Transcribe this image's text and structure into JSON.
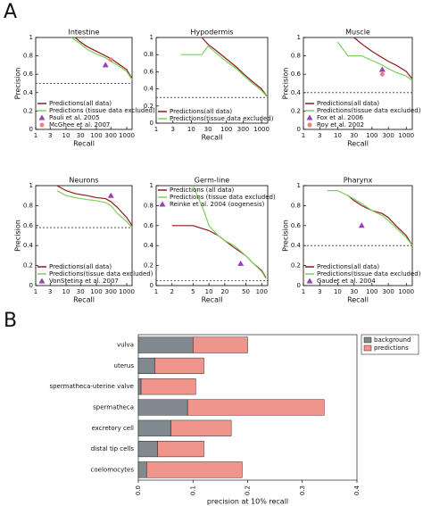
{
  "panel_labels": [
    "A",
    "B"
  ],
  "chart_data": [
    {
      "type": "line",
      "title": "Intestine",
      "xlabel": "Recall",
      "ylabel": "Precision",
      "xlog": true,
      "xlim": [
        1,
        1500
      ],
      "ylim": [
        0,
        1
      ],
      "xticks": [
        1,
        3,
        10,
        30,
        100,
        300,
        1000
      ],
      "yticks": [
        0,
        0.2,
        0.4,
        0.6,
        0.8,
        1
      ],
      "baseline": 0.5,
      "legend": "lower left",
      "series": [
        {
          "name": "Predictions(all data)",
          "color": "#8b1a1a",
          "x": [
            20,
            30,
            50,
            100,
            200,
            300,
            500,
            1000,
            1500
          ],
          "values": [
            1,
            0.95,
            0.9,
            0.85,
            0.8,
            0.77,
            0.72,
            0.65,
            0.55
          ]
        },
        {
          "name": "Predictions (tissue data excluded)",
          "color": "#7ccf5c",
          "x": [
            15,
            30,
            50,
            100,
            200,
            300,
            500,
            1000,
            1500
          ],
          "values": [
            1,
            0.93,
            0.87,
            0.82,
            0.78,
            0.74,
            0.7,
            0.63,
            0.54
          ]
        },
        {
          "name": "Pauli et al. 2005",
          "color": "#9b3fb5",
          "marker": "triangle",
          "x": [
            200
          ],
          "values": [
            0.7
          ]
        },
        {
          "name": "McGhee et al. 2007",
          "color": "#f08080",
          "marker": "circle",
          "x": [
            300
          ],
          "values": [
            0.76
          ]
        }
      ]
    },
    {
      "type": "line",
      "title": "Hypodermis",
      "xlabel": "Recall",
      "xlog": true,
      "xlim": [
        1,
        1500
      ],
      "ylim": [
        0,
        1
      ],
      "xticks": [
        1,
        3,
        10,
        30,
        100,
        300,
        1000
      ],
      "yticks": [
        0,
        0.2,
        0.4,
        0.6,
        0.8,
        1
      ],
      "baseline": 0.3,
      "legend": "lower left",
      "series": [
        {
          "name": "Predictions(all data)",
          "color": "#8b1a1a",
          "x": [
            20,
            30,
            50,
            100,
            200,
            300,
            500,
            1000,
            1500
          ],
          "values": [
            1,
            0.92,
            0.85,
            0.75,
            0.65,
            0.58,
            0.5,
            0.4,
            0.3
          ]
        },
        {
          "name": "Predictions(tissue data excluded)",
          "color": "#7ccf5c",
          "x": [
            5,
            20,
            30,
            50,
            100,
            200,
            300,
            500,
            1000,
            1500
          ],
          "values": [
            0.8,
            0.8,
            0.9,
            0.82,
            0.72,
            0.63,
            0.56,
            0.48,
            0.38,
            0.3
          ]
        }
      ]
    },
    {
      "type": "line",
      "title": "Muscle",
      "xlabel": "Recall",
      "ylabel": "Precision",
      "xlog": true,
      "xlim": [
        1,
        1500
      ],
      "ylim": [
        0,
        1
      ],
      "xticks": [
        1,
        3,
        10,
        30,
        100,
        300,
        1000
      ],
      "yticks": [
        0,
        0.2,
        0.4,
        0.6,
        0.8,
        1
      ],
      "baseline": 0.4,
      "legend": "lower left",
      "series": [
        {
          "name": "Predictions(all data)",
          "color": "#8b1a1a",
          "x": [
            30,
            50,
            100,
            200,
            300,
            500,
            1000,
            1500
          ],
          "values": [
            1,
            0.93,
            0.85,
            0.78,
            0.74,
            0.7,
            0.63,
            0.55
          ]
        },
        {
          "name": "Predictions(tissue data excluded)",
          "color": "#7ccf5c",
          "x": [
            10,
            20,
            50,
            100,
            200,
            300,
            500,
            1000,
            1500
          ],
          "values": [
            0.95,
            0.8,
            0.8,
            0.75,
            0.7,
            0.66,
            0.62,
            0.58,
            0.53
          ]
        },
        {
          "name": "Fox et al. 2006",
          "color": "#9b3fb5",
          "marker": "triangle",
          "x": [
            200
          ],
          "values": [
            0.65
          ]
        },
        {
          "name": "Roy et al. 2002",
          "color": "#f08080",
          "marker": "circle",
          "x": [
            200
          ],
          "values": [
            0.6
          ]
        }
      ]
    },
    {
      "type": "line",
      "title": "Neurons",
      "xlabel": "Recall",
      "ylabel": "Precision",
      "xlog": true,
      "xlim": [
        1,
        1500
      ],
      "ylim": [
        0,
        1
      ],
      "xticks": [
        1,
        3,
        10,
        30,
        100,
        300,
        1000
      ],
      "yticks": [
        0,
        0.2,
        0.4,
        0.6,
        0.8,
        1
      ],
      "baseline": 0.58,
      "legend": "lower left",
      "series": [
        {
          "name": "Predictions(all data)",
          "color": "#8b1a1a",
          "x": [
            5,
            10,
            20,
            50,
            100,
            200,
            300,
            500,
            1000,
            1500
          ],
          "values": [
            1,
            0.95,
            0.92,
            0.9,
            0.88,
            0.87,
            0.84,
            0.78,
            0.68,
            0.6
          ]
        },
        {
          "name": "Predictions(tissue data excluded)",
          "color": "#7ccf5c",
          "x": [
            5,
            10,
            20,
            50,
            100,
            200,
            300,
            500,
            1000,
            1500
          ],
          "values": [
            0.95,
            0.9,
            0.88,
            0.86,
            0.85,
            0.83,
            0.8,
            0.72,
            0.64,
            0.58
          ]
        },
        {
          "name": "VonStetina et al. 2007",
          "color": "#9b3fb5",
          "marker": "triangle",
          "x": [
            300
          ],
          "values": [
            0.9
          ]
        }
      ]
    },
    {
      "type": "line",
      "title": "Germ-line",
      "xlabel": "Recall",
      "xlog": true,
      "xlim": [
        1,
        130
      ],
      "ylim": [
        0,
        1
      ],
      "xticks": [
        1,
        2,
        5,
        10,
        20,
        50,
        100
      ],
      "yticks": [
        0,
        0.2,
        0.4,
        0.6,
        0.8,
        1
      ],
      "baseline": 0.05,
      "legend": "upper left",
      "series": [
        {
          "name": "Predictions  (all data)",
          "color": "#8b1a1a",
          "x": [
            2,
            5,
            10,
            15,
            20,
            30,
            50,
            70,
            100,
            120
          ],
          "values": [
            0.6,
            0.6,
            0.55,
            0.5,
            0.45,
            0.38,
            0.3,
            0.22,
            0.15,
            0.08
          ]
        },
        {
          "name": "Predictions (tissue data excluded)",
          "color": "#7ccf5c",
          "x": [
            5,
            8,
            10,
            15,
            20,
            30,
            50,
            70,
            100,
            120
          ],
          "values": [
            1,
            0.75,
            0.6,
            0.5,
            0.45,
            0.4,
            0.3,
            0.22,
            0.14,
            0.07
          ]
        },
        {
          "name": "Reinke et al. 2004 (oogenesis)",
          "color": "#9b3fb5",
          "marker": "triangle",
          "x": [
            40
          ],
          "values": [
            0.22
          ]
        }
      ]
    },
    {
      "type": "line",
      "title": "Pharynx",
      "xlabel": "Recall",
      "ylabel": "Precision",
      "xlog": true,
      "xlim": [
        1,
        1500
      ],
      "ylim": [
        0,
        1
      ],
      "xticks": [
        1,
        3,
        10,
        30,
        100,
        300,
        1000
      ],
      "yticks": [
        0,
        0.2,
        0.4,
        0.6,
        0.8,
        1
      ],
      "baseline": 0.4,
      "legend": "lower left",
      "series": [
        {
          "name": "Predictions(all data)",
          "color": "#8b1a1a",
          "x": [
            20,
            30,
            50,
            100,
            200,
            300,
            500,
            1000,
            1500
          ],
          "values": [
            0.9,
            0.85,
            0.8,
            0.75,
            0.72,
            0.68,
            0.6,
            0.5,
            0.4
          ]
        },
        {
          "name": "Predictions(tissue data excluded)",
          "color": "#7ccf5c",
          "x": [
            5,
            10,
            20,
            50,
            100,
            200,
            300,
            500,
            1000,
            1500
          ],
          "values": [
            0.95,
            0.95,
            0.9,
            0.82,
            0.75,
            0.7,
            0.65,
            0.58,
            0.48,
            0.4
          ]
        },
        {
          "name": "Gaudet et al. 2004",
          "color": "#9b3fb5",
          "marker": "triangle",
          "x": [
            50
          ],
          "values": [
            0.6
          ]
        }
      ]
    },
    {
      "type": "hbar",
      "xlabel": "precision at 10% recall",
      "legend": "upper right",
      "categories": [
        "vulva",
        "uterus",
        "spermatheca-uterine valve",
        "spermatheca",
        "excretory cell",
        "distal tip cells",
        "coelomocytes"
      ],
      "xlim": [
        0,
        0.4
      ],
      "xticks": [
        {
          "value": 0,
          "label": "0.0"
        },
        0.1,
        0.2,
        0.3,
        0.4
      ],
      "series": [
        {
          "name": "background",
          "color": "#808a8e",
          "values": [
            0.1,
            0.03,
            0.005,
            0.09,
            0.06,
            0.035,
            0.015
          ]
        },
        {
          "name": "predictions",
          "color": "#f0958b",
          "values": [
            0.1,
            0.09,
            0.1,
            0.25,
            0.11,
            0.085,
            0.175
          ]
        }
      ]
    }
  ]
}
